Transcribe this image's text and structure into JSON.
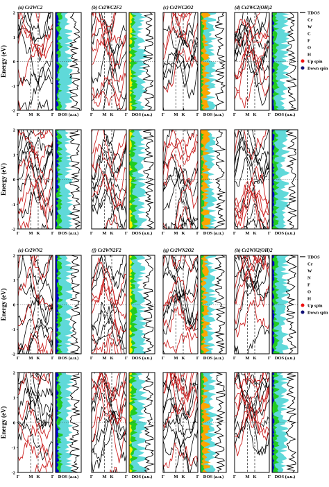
{
  "y_axis_label": "Energy (eV)",
  "y_ticks": [
    "2",
    "1",
    "0",
    "-1",
    "-2"
  ],
  "kpath_labels": [
    "Γ",
    "M",
    "K",
    "Γ"
  ],
  "dos_label": "DOS (a.u.)",
  "colors": {
    "bands_black": "#000000",
    "bands_red": "#cc2222",
    "tdos": "#000000",
    "Cr": "#5fd9d9",
    "W": "#0000cc",
    "C": "#22cc22",
    "N": "#22cc22",
    "F": "#ffee00",
    "O": "#ffa500",
    "H": "#3333aa",
    "up_spin": "#ee1111",
    "down_spin": "#111177"
  },
  "legend_carbide": [
    "TDOS",
    "Cr",
    "W",
    "C",
    "F",
    "O",
    "H",
    "Up spin",
    "Down spin"
  ],
  "legend_nitride": [
    "TDOS",
    "Cr",
    "W",
    "N",
    "F",
    "O",
    "H",
    "Up spin",
    "Down spin"
  ],
  "panels": [
    {
      "id": "a",
      "label": "(a) Cr",
      "sub2": "2",
      "mid": "WC",
      "sub3": "2",
      "suffix": ""
    },
    {
      "id": "b",
      "label": "(b) Cr",
      "sub2": "2",
      "mid": "WC",
      "sub3": "2",
      "suffix": "F2"
    },
    {
      "id": "c",
      "label": "(c) Cr",
      "sub2": "2",
      "mid": "WC",
      "sub3": "2",
      "suffix": "O2"
    },
    {
      "id": "d",
      "label": "(d) Cr",
      "sub2": "2",
      "mid": "WC",
      "sub3": "2",
      "suffix": "(OH)2"
    },
    {
      "id": "e",
      "label": "(e) Cr",
      "sub2": "2",
      "mid": "WN",
      "sub3": "2",
      "suffix": ""
    },
    {
      "id": "f",
      "label": "(f) Cr",
      "sub2": "2",
      "mid": "WN",
      "sub3": "2",
      "suffix": "F2"
    },
    {
      "id": "g",
      "label": "(g) Cr",
      "sub2": "2",
      "mid": "WN",
      "sub3": "2",
      "suffix": "O2"
    },
    {
      "id": "h",
      "label": "(h) Cr",
      "sub2": "2",
      "mid": "WN",
      "sub3": "2",
      "suffix": "(OH)2"
    }
  ],
  "panel_titles": [
    "(a) Cr2WC2",
    "(b) Cr2WC2F2",
    "(c) Cr2WC2O2",
    "(d) Cr2WC2(OH)2",
    "(e) Cr2WN2",
    "(f) Cr2WN2F2",
    "(g) Cr2WN2O2",
    "(h) Cr2WN2(OH)2"
  ]
}
